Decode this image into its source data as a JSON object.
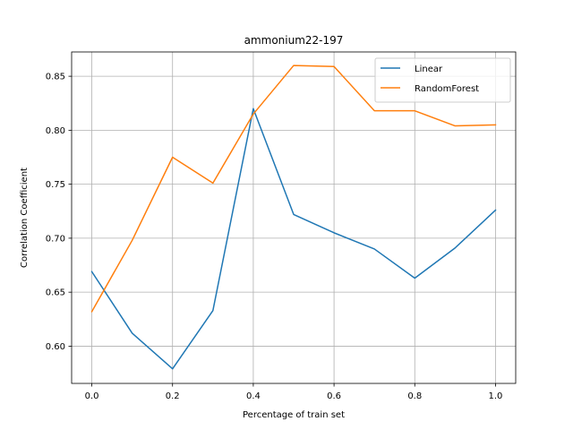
{
  "chart_data": {
    "type": "line",
    "title": "ammonium22-197",
    "xlabel": "Percentage of train set",
    "ylabel": "Correlation Coefficient",
    "x": [
      0.0,
      0.1,
      0.2,
      0.3,
      0.4,
      0.5,
      0.6,
      0.7,
      0.8,
      0.9,
      1.0
    ],
    "xlim": [
      -0.05,
      1.05
    ],
    "ylim": [
      0.5655,
      0.8725
    ],
    "xticks": [
      0.0,
      0.2,
      0.4,
      0.6,
      0.8,
      1.0
    ],
    "xtick_labels": [
      "0.0",
      "0.2",
      "0.4",
      "0.6",
      "0.8",
      "1.0"
    ],
    "yticks": [
      0.6,
      0.65,
      0.7,
      0.75,
      0.8,
      0.85
    ],
    "ytick_labels": [
      "0.60",
      "0.65",
      "0.70",
      "0.75",
      "0.80",
      "0.85"
    ],
    "grid": true,
    "legend_position": "top-right",
    "series": [
      {
        "name": "Linear",
        "color": "#1f77b4",
        "values": [
          0.669,
          0.612,
          0.579,
          0.633,
          0.82,
          0.722,
          0.705,
          0.69,
          0.663,
          0.691,
          0.726
        ]
      },
      {
        "name": "RandomForest",
        "color": "#ff7f0e",
        "values": [
          0.632,
          0.698,
          0.775,
          0.751,
          0.815,
          0.86,
          0.859,
          0.818,
          0.818,
          0.804,
          0.805
        ]
      }
    ]
  }
}
